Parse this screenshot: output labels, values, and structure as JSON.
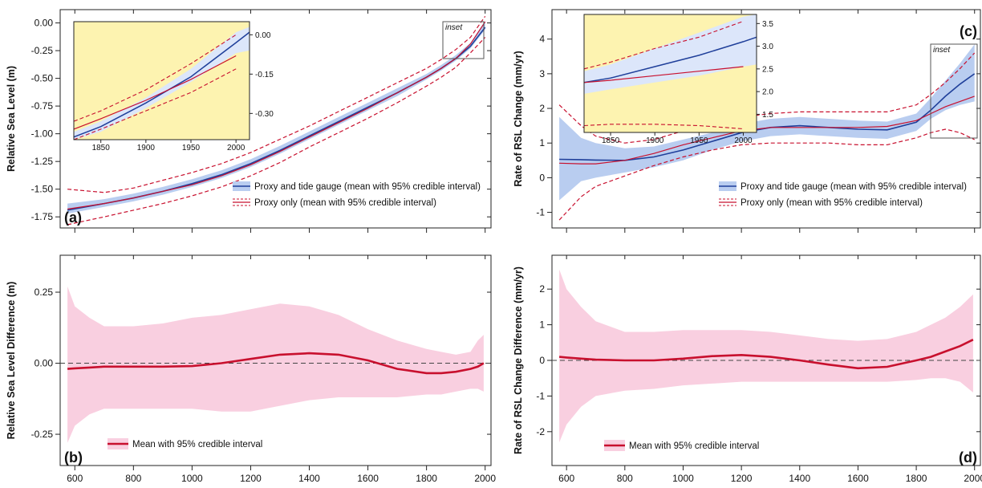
{
  "figure": {
    "background": "#ffffff",
    "colors": {
      "blue_line": "#1f3f9a",
      "blue_band": "#b9cdf0",
      "red_line": "#c8102e",
      "red_band": "#f9cfe0",
      "inset_bg": "#fdf3b0",
      "zero_line": "#444444"
    }
  },
  "chart_data": [
    {
      "id": "a",
      "type": "line",
      "panel_label": "(a)",
      "ylabel": "Relative Sea Level (m)",
      "xlim": [
        550,
        2020
      ],
      "ylim": [
        -1.85,
        0.12
      ],
      "xticks": [
        600,
        800,
        1000,
        1200,
        1400,
        1600,
        1800,
        2000
      ],
      "yticks": [
        0.0,
        -0.25,
        -0.5,
        -0.75,
        -1.0,
        -1.25,
        -1.5,
        -1.75
      ],
      "ytick_labels": [
        "0.00",
        "-0.25",
        "-0.50",
        "-0.75",
        "-1.00",
        "-1.25",
        "-1.50",
        "-1.75"
      ],
      "x": [
        575,
        700,
        800,
        900,
        1000,
        1100,
        1200,
        1300,
        1400,
        1500,
        1600,
        1700,
        1800,
        1850,
        1900,
        1950,
        2000
      ],
      "series": [
        {
          "name": "Proxy and tide gauge (mean with 95% credible interval)",
          "style": "band",
          "mean": [
            -1.69,
            -1.63,
            -1.58,
            -1.52,
            -1.45,
            -1.37,
            -1.27,
            -1.15,
            -1.02,
            -0.89,
            -0.76,
            -0.63,
            -0.49,
            -0.41,
            -0.32,
            -0.21,
            -0.04
          ],
          "lower": [
            -1.72,
            -1.66,
            -1.61,
            -1.55,
            -1.48,
            -1.4,
            -1.3,
            -1.18,
            -1.05,
            -0.92,
            -0.79,
            -0.66,
            -0.51,
            -0.43,
            -0.34,
            -0.23,
            -0.06
          ],
          "upper": [
            -1.63,
            -1.59,
            -1.54,
            -1.48,
            -1.41,
            -1.33,
            -1.23,
            -1.11,
            -0.98,
            -0.85,
            -0.72,
            -0.59,
            -0.46,
            -0.38,
            -0.29,
            -0.18,
            0.02
          ]
        },
        {
          "name": "Proxy only (mean with 95% credible interval)",
          "style": "dashed",
          "mean": [
            -1.68,
            -1.63,
            -1.58,
            -1.52,
            -1.46,
            -1.38,
            -1.28,
            -1.16,
            -1.03,
            -0.9,
            -0.77,
            -0.63,
            -0.49,
            -0.41,
            -0.32,
            -0.19,
            0.01
          ],
          "lower": [
            -1.82,
            -1.75,
            -1.69,
            -1.63,
            -1.56,
            -1.48,
            -1.38,
            -1.26,
            -1.12,
            -0.99,
            -0.86,
            -0.72,
            -0.57,
            -0.49,
            -0.4,
            -0.27,
            -0.13
          ],
          "upper": [
            -1.5,
            -1.53,
            -1.49,
            -1.42,
            -1.35,
            -1.27,
            -1.17,
            -1.05,
            -0.93,
            -0.8,
            -0.67,
            -0.54,
            -0.41,
            -0.33,
            -0.24,
            -0.13,
            0.06
          ]
        }
      ],
      "inset_tag": "inset",
      "inset": {
        "xlim": [
          1820,
          2015
        ],
        "ylim": [
          -0.4,
          0.05
        ],
        "xticks": [
          1850,
          1900,
          1950,
          2000
        ],
        "yticks": [
          0.0,
          -0.15,
          -0.3
        ],
        "ytick_labels": [
          "0.00",
          "-0.15",
          "-0.30"
        ],
        "band_x": [
          1820,
          1850,
          1900,
          1950,
          2000,
          2015
        ],
        "band_mean": [
          -0.39,
          -0.35,
          -0.26,
          -0.16,
          -0.03,
          0.01
        ],
        "band_lower": [
          -0.4,
          -0.37,
          -0.28,
          -0.18,
          -0.07,
          -0.06
        ],
        "band_upper": [
          -0.37,
          -0.33,
          -0.24,
          -0.13,
          0.01,
          0.03
        ],
        "proxy_x": [
          1820,
          1850,
          1900,
          1950,
          2000
        ],
        "proxy_mean": [
          -0.36,
          -0.32,
          -0.25,
          -0.17,
          -0.08
        ],
        "proxy_lower": [
          -0.4,
          -0.36,
          -0.29,
          -0.22,
          -0.13
        ],
        "proxy_upper": [
          -0.33,
          -0.29,
          -0.21,
          -0.11,
          0.0
        ]
      }
    },
    {
      "id": "b",
      "type": "area",
      "panel_label": "(b)",
      "ylabel": "Relative Sea Level Difference (m)",
      "xlim": [
        550,
        2020
      ],
      "ylim": [
        -0.36,
        0.38
      ],
      "xticks": [
        600,
        800,
        1000,
        1200,
        1400,
        1600,
        1800,
        2000
      ],
      "yticks": [
        0.25,
        0.0,
        -0.25
      ],
      "ytick_labels": [
        "0.25",
        "0.00",
        "-0.25"
      ],
      "x": [
        575,
        600,
        650,
        700,
        800,
        900,
        1000,
        1100,
        1200,
        1300,
        1400,
        1500,
        1600,
        1700,
        1800,
        1850,
        1900,
        1950,
        1975,
        1995
      ],
      "series": [
        {
          "name": "Mean with 95% credible interval",
          "mean": [
            -0.02,
            -0.018,
            -0.015,
            -0.012,
            -0.012,
            -0.012,
            -0.01,
            0.0,
            0.015,
            0.03,
            0.035,
            0.03,
            0.01,
            -0.02,
            -0.035,
            -0.035,
            -0.03,
            -0.02,
            -0.012,
            0.0
          ],
          "lower": [
            -0.28,
            -0.22,
            -0.18,
            -0.16,
            -0.16,
            -0.16,
            -0.16,
            -0.17,
            -0.17,
            -0.15,
            -0.13,
            -0.12,
            -0.12,
            -0.12,
            -0.11,
            -0.11,
            -0.1,
            -0.09,
            -0.09,
            -0.1
          ],
          "upper": [
            0.27,
            0.2,
            0.16,
            0.13,
            0.13,
            0.14,
            0.16,
            0.17,
            0.19,
            0.21,
            0.2,
            0.17,
            0.12,
            0.08,
            0.05,
            0.04,
            0.03,
            0.04,
            0.08,
            0.1
          ]
        }
      ]
    },
    {
      "id": "c",
      "type": "line",
      "panel_label": "(c)",
      "ylabel": "Rate of RSL Change (mm/yr)",
      "xlim": [
        550,
        2020
      ],
      "ylim": [
        -1.45,
        4.85
      ],
      "xticks": [
        600,
        800,
        1000,
        1200,
        1400,
        1600,
        1800,
        2000
      ],
      "yticks": [
        4,
        3,
        2,
        1,
        0,
        -1
      ],
      "ytick_labels": [
        "4",
        "3",
        "2",
        "1",
        "0",
        "-1"
      ],
      "x": [
        575,
        650,
        700,
        800,
        900,
        1000,
        1100,
        1200,
        1300,
        1400,
        1500,
        1600,
        1700,
        1800,
        1850,
        1900,
        1950,
        2000
      ],
      "series": [
        {
          "name": "Proxy and tide gauge (mean with 95% credible interval)",
          "style": "band",
          "mean": [
            0.53,
            0.52,
            0.51,
            0.5,
            0.6,
            0.8,
            1.05,
            1.3,
            1.45,
            1.5,
            1.45,
            1.4,
            1.38,
            1.6,
            1.95,
            2.35,
            2.7,
            3.0
          ],
          "lower": [
            -0.65,
            -0.1,
            0.0,
            0.15,
            0.3,
            0.5,
            0.8,
            1.05,
            1.2,
            1.25,
            1.2,
            1.15,
            1.12,
            1.35,
            1.7,
            1.95,
            2.1,
            2.2
          ],
          "upper": [
            1.75,
            1.15,
            1.0,
            0.85,
            0.9,
            1.1,
            1.3,
            1.55,
            1.7,
            1.75,
            1.7,
            1.65,
            1.62,
            1.85,
            2.3,
            2.8,
            3.3,
            3.85
          ]
        },
        {
          "name": "Proxy only (mean with 95% credible interval)",
          "style": "dashed",
          "mean": [
            0.42,
            0.4,
            0.4,
            0.5,
            0.7,
            0.95,
            1.15,
            1.35,
            1.45,
            1.45,
            1.45,
            1.45,
            1.48,
            1.65,
            1.85,
            2.05,
            2.2,
            2.35
          ],
          "lower": [
            -1.22,
            -0.55,
            -0.25,
            0.05,
            0.35,
            0.6,
            0.8,
            0.95,
            1.0,
            1.0,
            1.0,
            0.95,
            0.95,
            1.15,
            1.3,
            1.4,
            1.3,
            1.1
          ],
          "upper": [
            2.1,
            1.5,
            1.2,
            1.0,
            1.1,
            1.35,
            1.55,
            1.75,
            1.85,
            1.9,
            1.9,
            1.9,
            1.9,
            2.1,
            2.4,
            2.75,
            3.15,
            3.6
          ]
        }
      ],
      "inset_tag": "inset",
      "inset": {
        "xlim": [
          1820,
          2015
        ],
        "ylim": [
          1.1,
          3.7
        ],
        "xticks": [
          1850,
          1900,
          1950,
          2000
        ],
        "yticks": [
          3.5,
          3.0,
          2.5,
          2.0,
          1.5
        ],
        "ytick_labels": [
          "3.5",
          "3.0",
          "2.5",
          "2.0",
          "1.5"
        ],
        "band_x": [
          1820,
          1850,
          1900,
          1950,
          2000,
          2015
        ],
        "band_mean": [
          2.2,
          2.3,
          2.55,
          2.8,
          3.1,
          3.2
        ],
        "band_lower": [
          1.95,
          2.05,
          2.2,
          2.35,
          2.55,
          2.6
        ],
        "band_upper": [
          2.45,
          2.6,
          2.95,
          3.3,
          3.65,
          3.7
        ],
        "proxy_x": [
          1820,
          1850,
          1900,
          1950,
          2000
        ],
        "proxy_mean": [
          2.2,
          2.25,
          2.35,
          2.45,
          2.55
        ],
        "proxy_lower": [
          1.25,
          1.28,
          1.28,
          1.25,
          1.18
        ],
        "proxy_upper": [
          2.5,
          2.65,
          2.95,
          3.2,
          3.55
        ]
      }
    },
    {
      "id": "d",
      "type": "area",
      "panel_label": "(d)",
      "ylabel": "Rate of RSL Change Difference (mm/yr)",
      "xlim": [
        550,
        2020
      ],
      "ylim": [
        -2.95,
        2.95
      ],
      "xticks": [
        600,
        800,
        1000,
        1200,
        1400,
        1600,
        1800,
        2000
      ],
      "yticks": [
        2,
        1,
        0,
        -1,
        -2
      ],
      "ytick_labels": [
        "2",
        "1",
        "0",
        "-1",
        "-2"
      ],
      "x": [
        575,
        600,
        650,
        700,
        800,
        900,
        1000,
        1100,
        1200,
        1300,
        1400,
        1500,
        1600,
        1700,
        1800,
        1850,
        1900,
        1950,
        1995
      ],
      "series": [
        {
          "name": "Mean with 95% credible interval",
          "mean": [
            0.1,
            0.08,
            0.05,
            0.02,
            0.0,
            0.0,
            0.05,
            0.12,
            0.15,
            0.1,
            0.0,
            -0.12,
            -0.22,
            -0.18,
            0.0,
            0.1,
            0.25,
            0.4,
            0.58
          ],
          "lower": [
            -2.3,
            -1.8,
            -1.3,
            -1.0,
            -0.85,
            -0.8,
            -0.7,
            -0.65,
            -0.6,
            -0.6,
            -0.6,
            -0.6,
            -0.6,
            -0.6,
            -0.55,
            -0.5,
            -0.5,
            -0.6,
            -0.9
          ],
          "upper": [
            2.55,
            2.0,
            1.5,
            1.1,
            0.8,
            0.8,
            0.85,
            0.85,
            0.85,
            0.8,
            0.7,
            0.6,
            0.55,
            0.6,
            0.8,
            1.0,
            1.2,
            1.5,
            1.85
          ]
        }
      ]
    }
  ]
}
